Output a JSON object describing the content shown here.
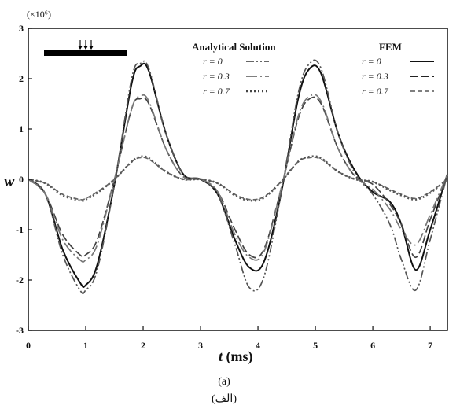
{
  "chart_data": {
    "type": "line",
    "multiplier_label": "(×10⁶)",
    "ylabel": "w",
    "xlabel_var": "t",
    "xlabel_unit": " (ms)",
    "xlim": [
      0,
      7.3
    ],
    "ylim": [
      -3,
      3
    ],
    "x_ticks": [
      "0",
      "1",
      "2",
      "3",
      "4",
      "5",
      "6",
      "7"
    ],
    "y_ticks": [
      "3",
      "2",
      "1",
      "0",
      "-1",
      "-2",
      "-3"
    ],
    "grid": false,
    "legends": [
      {
        "title": "Analytical Solution",
        "entries": [
          {
            "label": "r = 0",
            "style": "dash-dot-dot"
          },
          {
            "label": "r = 0.3",
            "style": "long-dash-dot"
          },
          {
            "label": "r = 0.7",
            "style": "dotted"
          }
        ]
      },
      {
        "title": "FEM",
        "entries": [
          {
            "label": "r = 0",
            "style": "solid"
          },
          {
            "label": "r = 0.3",
            "style": "long-dash"
          },
          {
            "label": "r = 0.7",
            "style": "short-dash"
          }
        ]
      }
    ],
    "series": [
      {
        "name": "r = 0",
        "group": "FEM",
        "color": "#111111",
        "x": [
          0,
          0.3,
          0.6,
          0.9,
          1.0,
          1.2,
          1.5,
          1.8,
          1.95,
          2.1,
          2.4,
          2.7,
          3.0,
          3.3,
          3.6,
          3.85,
          4.1,
          4.4,
          4.7,
          4.9,
          5.1,
          5.4,
          5.7,
          6.0,
          6.3,
          6.5,
          6.75,
          7.0,
          7.3
        ],
        "y": [
          0,
          -0.3,
          -1.4,
          -2.05,
          -2.1,
          -1.7,
          -0.1,
          1.9,
          2.25,
          2.15,
          0.9,
          0.1,
          0,
          -0.3,
          -1.2,
          -1.75,
          -1.65,
          -0.3,
          1.6,
          2.2,
          2.1,
          0.9,
          0.15,
          -0.25,
          -0.45,
          -0.9,
          -1.8,
          -1.0,
          0.1
        ]
      },
      {
        "name": "r = 0",
        "group": "Analytical Solution",
        "color": "#555555",
        "x": [
          0,
          0.3,
          0.6,
          0.9,
          1.0,
          1.2,
          1.5,
          1.8,
          1.95,
          2.1,
          2.4,
          2.7,
          3.0,
          3.3,
          3.6,
          3.85,
          4.1,
          4.4,
          4.7,
          4.9,
          5.1,
          5.4,
          5.7,
          6.0,
          6.3,
          6.5,
          6.75,
          7.0,
          7.3
        ],
        "y": [
          0,
          -0.3,
          -1.5,
          -2.2,
          -2.2,
          -1.8,
          -0.1,
          2.0,
          2.3,
          2.2,
          0.9,
          0.1,
          0,
          -0.3,
          -1.3,
          -2.15,
          -1.95,
          -0.3,
          1.7,
          2.3,
          2.2,
          0.9,
          0.1,
          -0.3,
          -0.9,
          -1.6,
          -2.2,
          -1.2,
          0.1
        ]
      },
      {
        "name": "r = 0.3",
        "group": "FEM",
        "color": "#444444",
        "x": [
          0,
          0.3,
          0.6,
          0.9,
          1.0,
          1.2,
          1.5,
          1.8,
          1.95,
          2.1,
          2.4,
          2.7,
          3.0,
          3.3,
          3.6,
          3.85,
          4.1,
          4.4,
          4.7,
          4.9,
          5.1,
          5.4,
          5.7,
          6.0,
          6.3,
          6.5,
          6.75,
          7.0,
          7.3
        ],
        "y": [
          0,
          -0.3,
          -1.1,
          -1.5,
          -1.5,
          -1.2,
          0,
          1.4,
          1.6,
          1.5,
          0.6,
          0.05,
          0,
          -0.25,
          -1.0,
          -1.5,
          -1.4,
          -0.2,
          1.2,
          1.6,
          1.5,
          0.6,
          0.05,
          -0.1,
          -0.5,
          -0.9,
          -1.55,
          -0.8,
          0.1
        ]
      },
      {
        "name": "r = 0.3",
        "group": "Analytical Solution",
        "color": "#777777",
        "x": [
          0,
          0.3,
          0.6,
          0.9,
          1.0,
          1.2,
          1.5,
          1.8,
          1.95,
          2.1,
          2.4,
          2.7,
          3.0,
          3.3,
          3.6,
          3.85,
          4.1,
          4.4,
          4.7,
          4.9,
          5.1,
          5.4,
          5.7,
          6.0,
          6.3,
          6.5,
          6.75,
          7.0,
          7.3
        ],
        "y": [
          0,
          -0.3,
          -1.2,
          -1.6,
          -1.6,
          -1.3,
          0,
          1.4,
          1.65,
          1.55,
          0.6,
          0.05,
          0,
          -0.25,
          -1.1,
          -1.55,
          -1.45,
          -0.2,
          1.25,
          1.65,
          1.55,
          0.6,
          0.05,
          -0.2,
          -0.6,
          -1.0,
          -1.3,
          -0.7,
          0.1
        ]
      },
      {
        "name": "r = 0.7",
        "group": "FEM",
        "color": "#666666",
        "x": [
          0,
          0.3,
          0.6,
          0.9,
          1.0,
          1.2,
          1.5,
          1.8,
          1.95,
          2.1,
          2.4,
          2.7,
          3.0,
          3.3,
          3.6,
          3.85,
          4.1,
          4.4,
          4.7,
          4.9,
          5.1,
          5.4,
          5.7,
          6.0,
          6.3,
          6.5,
          6.75,
          7.0,
          7.3
        ],
        "y": [
          0,
          -0.08,
          -0.3,
          -0.4,
          -0.38,
          -0.25,
          0,
          0.35,
          0.43,
          0.4,
          0.15,
          0,
          0,
          -0.08,
          -0.3,
          -0.4,
          -0.35,
          -0.05,
          0.35,
          0.43,
          0.4,
          0.15,
          0,
          -0.05,
          -0.2,
          -0.3,
          -0.38,
          -0.25,
          0
        ]
      },
      {
        "name": "r = 0.7",
        "group": "Analytical Solution",
        "color": "#555555",
        "x": [
          0,
          0.3,
          0.6,
          0.9,
          1.0,
          1.2,
          1.5,
          1.8,
          1.95,
          2.1,
          2.4,
          2.7,
          3.0,
          3.3,
          3.6,
          3.85,
          4.1,
          4.4,
          4.7,
          4.9,
          5.1,
          5.4,
          5.7,
          6.0,
          6.3,
          6.5,
          6.75,
          7.0,
          7.3
        ],
        "y": [
          0,
          -0.08,
          -0.32,
          -0.42,
          -0.4,
          -0.27,
          0,
          0.35,
          0.45,
          0.42,
          0.15,
          0,
          0,
          -0.08,
          -0.32,
          -0.42,
          -0.37,
          -0.05,
          0.35,
          0.45,
          0.42,
          0.15,
          0,
          -0.05,
          -0.22,
          -0.32,
          -0.4,
          -0.27,
          0
        ]
      }
    ]
  },
  "captions": {
    "en": "(a)",
    "fa": "(الف)"
  }
}
